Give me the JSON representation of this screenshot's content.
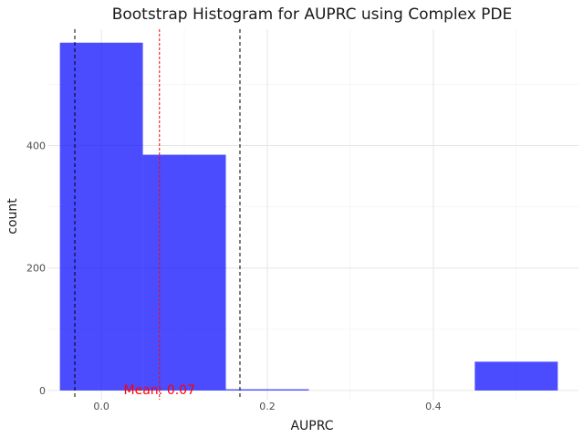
{
  "chart_data": {
    "type": "bar",
    "title": "Bootstrap Histogram for AUPRC using Complex PDE",
    "xlabel": "AUPRC",
    "ylabel": "count",
    "xlim": [
      -0.065,
      0.575
    ],
    "ylim": [
      -15,
      590
    ],
    "x_ticks": [
      0.0,
      0.2,
      0.4
    ],
    "x_tick_labels": [
      "0.0",
      "0.2",
      "0.4"
    ],
    "y_ticks": [
      0,
      200,
      400
    ],
    "y_tick_labels": [
      "0",
      "200",
      "400"
    ],
    "bins": [
      {
        "x0": -0.05,
        "x1": 0.05,
        "count": 568
      },
      {
        "x0": 0.05,
        "x1": 0.15,
        "count": 385
      },
      {
        "x0": 0.15,
        "x1": 0.25,
        "count": 2
      },
      {
        "x0": 0.25,
        "x1": 0.35,
        "count": 0
      },
      {
        "x0": 0.35,
        "x1": 0.45,
        "count": 0
      },
      {
        "x0": 0.45,
        "x1": 0.55,
        "count": 47
      }
    ],
    "bar_color": "#0000ff",
    "mean": 0.07,
    "mean_label": "Mean: 0.07",
    "mean_color": "#ff0000",
    "ci_lines": [
      -0.032,
      0.167
    ],
    "ci_color": "#000000",
    "grid": true
  }
}
